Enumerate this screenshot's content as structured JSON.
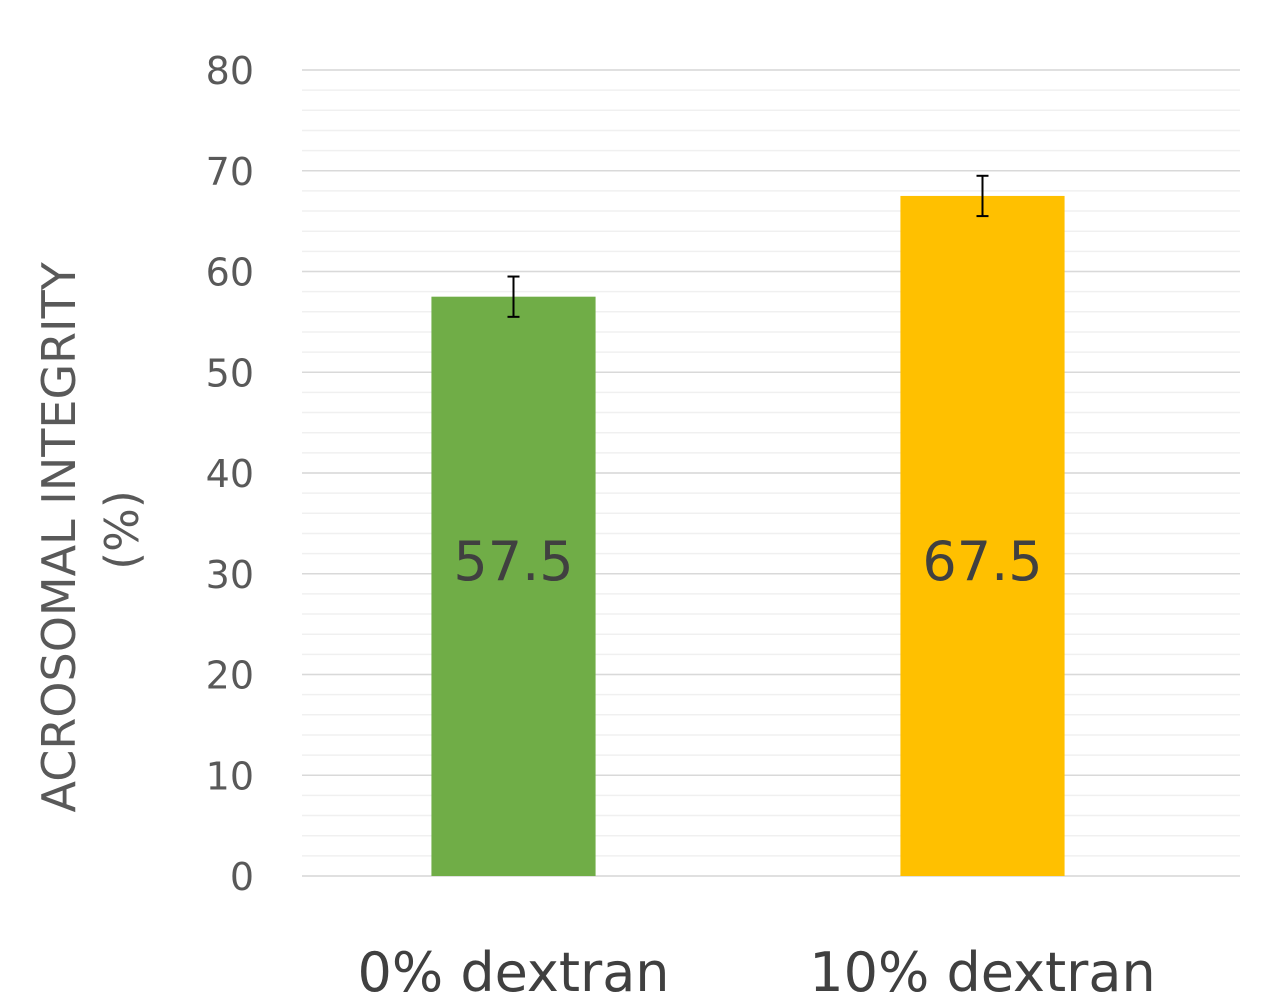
{
  "chart_data": {
    "type": "bar",
    "title": "",
    "xlabel": "",
    "ylabel_lines": [
      "ACROSOMAL INTEGRITY",
      "(%)"
    ],
    "categories": [
      "0% dextran",
      "10% dextran"
    ],
    "values": [
      57.5,
      67.5
    ],
    "value_labels": [
      "57.5",
      "67.5"
    ],
    "error": [
      2,
      2
    ],
    "colors": [
      "#70AD47",
      "#FFC000"
    ],
    "ylim": [
      0,
      80
    ],
    "ytick_step": 10,
    "ytick_labels": [
      "0",
      "10",
      "20",
      "30",
      "40",
      "50",
      "60",
      "70",
      "80"
    ],
    "minor_gridlines": true,
    "grid": true,
    "legend": "none"
  }
}
